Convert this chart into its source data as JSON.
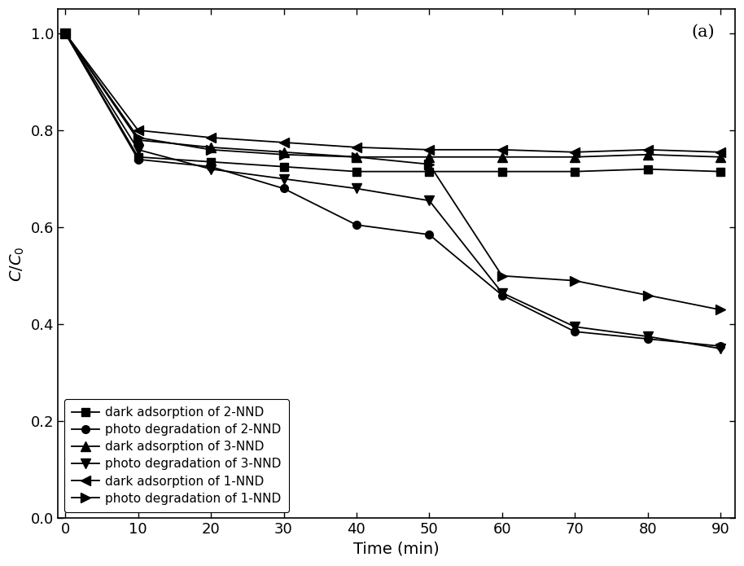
{
  "x": [
    0,
    10,
    20,
    30,
    40,
    50,
    60,
    70,
    80,
    90
  ],
  "series": {
    "dark_adsorption_2NND": {
      "y": [
        1.0,
        0.745,
        0.735,
        0.725,
        0.715,
        0.715,
        0.715,
        0.715,
        0.72,
        0.715
      ],
      "label": "dark adsorption of 2-NND",
      "marker": "s",
      "markersize": 7,
      "color": "#000000"
    },
    "photo_degradation_2NND": {
      "y": [
        1.0,
        0.74,
        0.725,
        0.68,
        0.605,
        0.585,
        0.46,
        0.385,
        0.37,
        0.355
      ],
      "label": "photo degradation of 2-NND",
      "marker": "o",
      "markersize": 7,
      "color": "#000000"
    },
    "dark_adsorption_3NND": {
      "y": [
        1.0,
        0.78,
        0.765,
        0.755,
        0.745,
        0.745,
        0.745,
        0.745,
        0.75,
        0.745
      ],
      "label": "dark adsorption of 3-NND",
      "marker": "^",
      "markersize": 8,
      "color": "#000000"
    },
    "photo_degradation_3NND": {
      "y": [
        1.0,
        0.76,
        0.72,
        0.7,
        0.68,
        0.655,
        0.465,
        0.395,
        0.375,
        0.35
      ],
      "label": "photo degradation of 3-NND",
      "marker": "v",
      "markersize": 8,
      "color": "#000000"
    },
    "dark_adsorption_1NND": {
      "y": [
        1.0,
        0.8,
        0.785,
        0.775,
        0.765,
        0.76,
        0.76,
        0.755,
        0.76,
        0.755
      ],
      "label": "dark adsorption of 1-NND",
      "marker": "<",
      "markersize": 8,
      "color": "#000000"
    },
    "photo_degradation_1NND": {
      "y": [
        1.0,
        0.785,
        0.76,
        0.75,
        0.745,
        0.73,
        0.5,
        0.49,
        0.46,
        0.43
      ],
      "label": "photo degradation of 1-NND",
      "marker": ">",
      "markersize": 8,
      "color": "#000000"
    }
  },
  "xlabel": "Time (min)",
  "ylabel": "C/C_0",
  "xlim_left": -1,
  "xlim_right": 92,
  "ylim": [
    0.0,
    1.05
  ],
  "yticks": [
    0.0,
    0.2,
    0.4,
    0.6,
    0.8,
    1.0
  ],
  "xticks": [
    0,
    10,
    20,
    30,
    40,
    50,
    60,
    70,
    80,
    90
  ],
  "annotation": "(a)",
  "background_color": "#ffffff",
  "linewidth": 1.3,
  "legend_fontsize": 11,
  "axis_fontsize": 14,
  "tick_fontsize": 13
}
